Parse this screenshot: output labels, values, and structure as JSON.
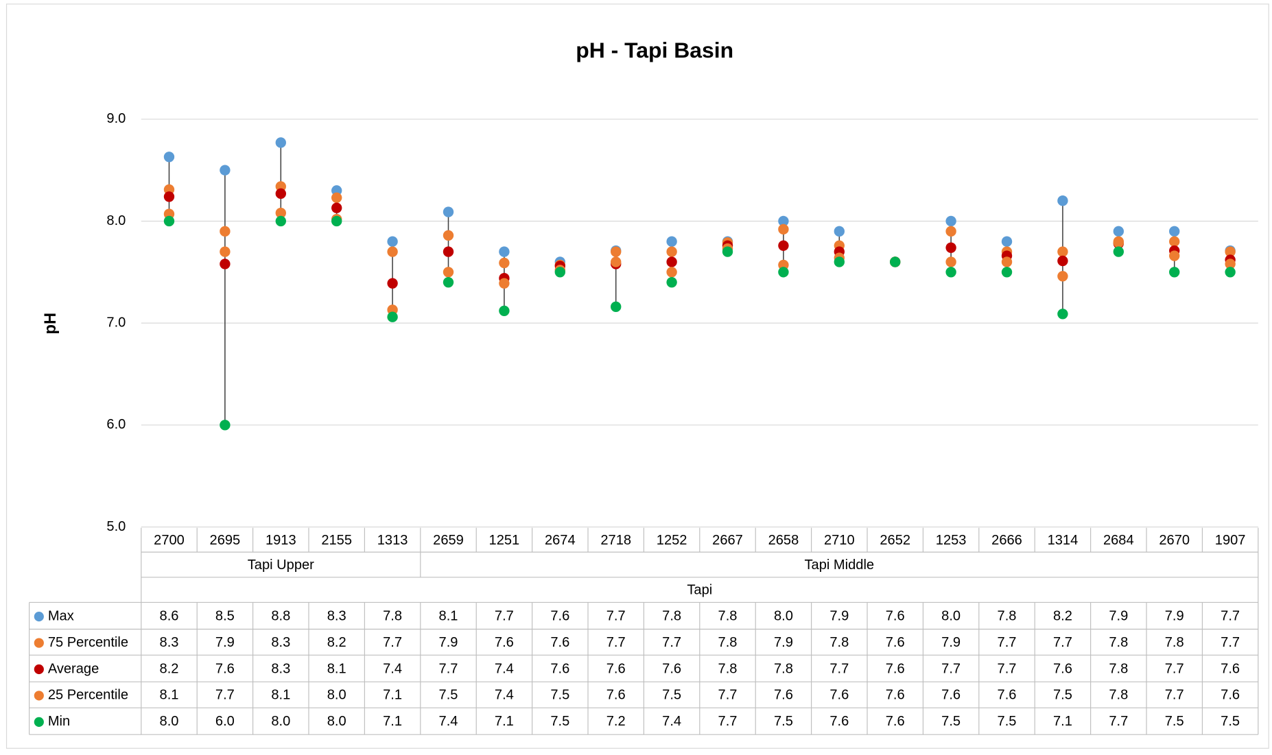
{
  "chart_data": {
    "type": "range_dot",
    "title": "pH - Tapi Basin",
    "y_label": "pH",
    "categories": [
      "2700",
      "2695",
      "1913",
      "2155",
      "1313",
      "2659",
      "1251",
      "2674",
      "2718",
      "1252",
      "2667",
      "2658",
      "2710",
      "2652",
      "1253",
      "2666",
      "1314",
      "2684",
      "2670",
      "1907"
    ],
    "category_groups": [
      {
        "name": "Tapi Upper",
        "count": 5
      },
      {
        "name": "Tapi Middle",
        "count": 15
      }
    ],
    "category_super": "Tapi",
    "ylim": [
      5.0,
      9.0
    ],
    "yticks": [
      {
        "value": 5,
        "label": "5.0"
      },
      {
        "value": 6,
        "label": "6.0"
      },
      {
        "value": 7,
        "label": "7.0"
      },
      {
        "value": 8,
        "label": "8.0"
      },
      {
        "value": 9,
        "label": "9.0"
      }
    ],
    "grid": true,
    "range_line": true,
    "series": [
      {
        "name": "Max",
        "color": "#5b9bd5",
        "values": [
          8.63,
          8.5,
          8.77,
          8.3,
          7.8,
          8.09,
          7.7,
          7.6,
          7.71,
          7.8,
          7.8,
          8.0,
          7.9,
          7.6,
          8.0,
          7.8,
          8.2,
          7.9,
          7.9,
          7.71
        ],
        "value_labels": [
          "8.6",
          "8.5",
          "8.8",
          "8.3",
          "7.8",
          "8.1",
          "7.7",
          "7.6",
          "7.7",
          "7.8",
          "7.8",
          "8.0",
          "7.9",
          "7.6",
          "8.0",
          "7.8",
          "8.2",
          "7.9",
          "7.9",
          "7.7"
        ]
      },
      {
        "name": "75 Percentile",
        "color": "#ed7d31",
        "values": [
          8.31,
          7.9,
          8.34,
          8.23,
          7.7,
          7.86,
          7.59,
          7.57,
          7.7,
          7.7,
          7.79,
          7.92,
          7.76,
          7.6,
          7.9,
          7.7,
          7.7,
          7.8,
          7.8,
          7.7
        ],
        "value_labels": [
          "8.3",
          "7.9",
          "8.3",
          "8.2",
          "7.7",
          "7.9",
          "7.6",
          "7.6",
          "7.7",
          "7.7",
          "7.8",
          "7.9",
          "7.8",
          "7.6",
          "7.9",
          "7.7",
          "7.7",
          "7.8",
          "7.8",
          "7.7"
        ]
      },
      {
        "name": "Average",
        "color": "#c00000",
        "values": [
          8.24,
          7.58,
          8.27,
          8.13,
          7.39,
          7.7,
          7.44,
          7.56,
          7.58,
          7.6,
          7.76,
          7.76,
          7.7,
          7.6,
          7.74,
          7.66,
          7.61,
          7.78,
          7.71,
          7.62
        ],
        "value_labels": [
          "8.2",
          "7.6",
          "8.3",
          "8.1",
          "7.4",
          "7.7",
          "7.4",
          "7.6",
          "7.6",
          "7.6",
          "7.8",
          "7.8",
          "7.7",
          "7.6",
          "7.7",
          "7.7",
          "7.6",
          "7.8",
          "7.7",
          "7.6"
        ]
      },
      {
        "name": "25 Percentile",
        "color": "#ed7d31",
        "values": [
          8.07,
          7.7,
          8.08,
          8.02,
          7.13,
          7.5,
          7.39,
          7.52,
          7.6,
          7.5,
          7.73,
          7.57,
          7.64,
          7.6,
          7.6,
          7.6,
          7.46,
          7.79,
          7.66,
          7.58
        ],
        "value_labels": [
          "8.1",
          "7.7",
          "8.1",
          "8.0",
          "7.1",
          "7.5",
          "7.4",
          "7.5",
          "7.6",
          "7.5",
          "7.7",
          "7.6",
          "7.6",
          "7.6",
          "7.6",
          "7.6",
          "7.5",
          "7.8",
          "7.7",
          "7.6"
        ]
      },
      {
        "name": "Min",
        "color": "#00b050",
        "values": [
          8.0,
          6.0,
          8.0,
          8.0,
          7.06,
          7.4,
          7.12,
          7.5,
          7.16,
          7.4,
          7.7,
          7.5,
          7.6,
          7.6,
          7.5,
          7.5,
          7.09,
          7.7,
          7.5,
          7.5
        ],
        "value_labels": [
          "8.0",
          "6.0",
          "8.0",
          "8.0",
          "7.1",
          "7.4",
          "7.1",
          "7.5",
          "7.2",
          "7.4",
          "7.7",
          "7.5",
          "7.6",
          "7.6",
          "7.5",
          "7.5",
          "7.1",
          "7.7",
          "7.5",
          "7.5"
        ]
      }
    ]
  }
}
